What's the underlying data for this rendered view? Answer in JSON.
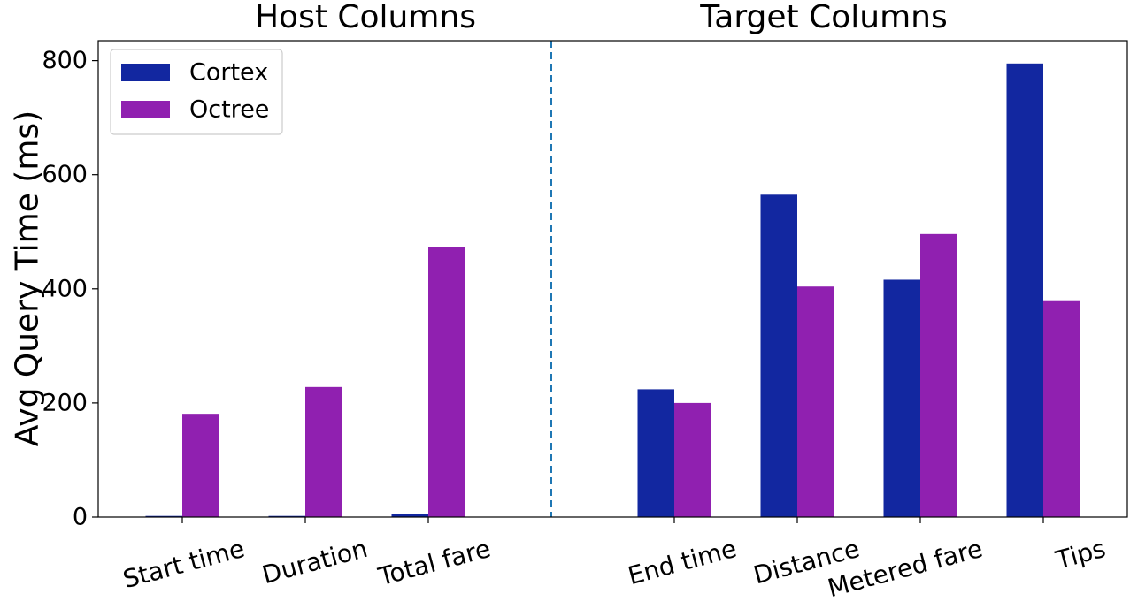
{
  "chart_data": {
    "type": "bar",
    "ylabel": "Avg Query Time (ms)",
    "ylim": [
      0,
      835
    ],
    "yticks": [
      0,
      200,
      400,
      600,
      800
    ],
    "grid": false,
    "legend_position": "top-left",
    "separator": "vertical dashed line between the two groups",
    "groups": [
      {
        "title": "Host Columns",
        "categories": [
          "Start time",
          "Duration",
          "Total fare"
        ],
        "series": [
          {
            "name": "Cortex",
            "values": [
              2,
              2,
              5
            ]
          },
          {
            "name": "Octree",
            "values": [
              181,
              228,
              474
            ]
          }
        ]
      },
      {
        "title": "Target Columns",
        "categories": [
          "End time",
          "Distance",
          "Metered fare",
          "Tips"
        ],
        "series": [
          {
            "name": "Cortex",
            "values": [
              224,
              565,
              416,
              795
            ]
          },
          {
            "name": "Octree",
            "values": [
              200,
              404,
              496,
              380
            ]
          }
        ]
      }
    ],
    "legend": [
      {
        "name": "Cortex",
        "color": "#1227a0"
      },
      {
        "name": "Octree",
        "color": "#9020b0"
      }
    ],
    "colors": {
      "Cortex": "#1227a0",
      "Octree": "#9020b0",
      "separator": "#1f77b4"
    }
  }
}
